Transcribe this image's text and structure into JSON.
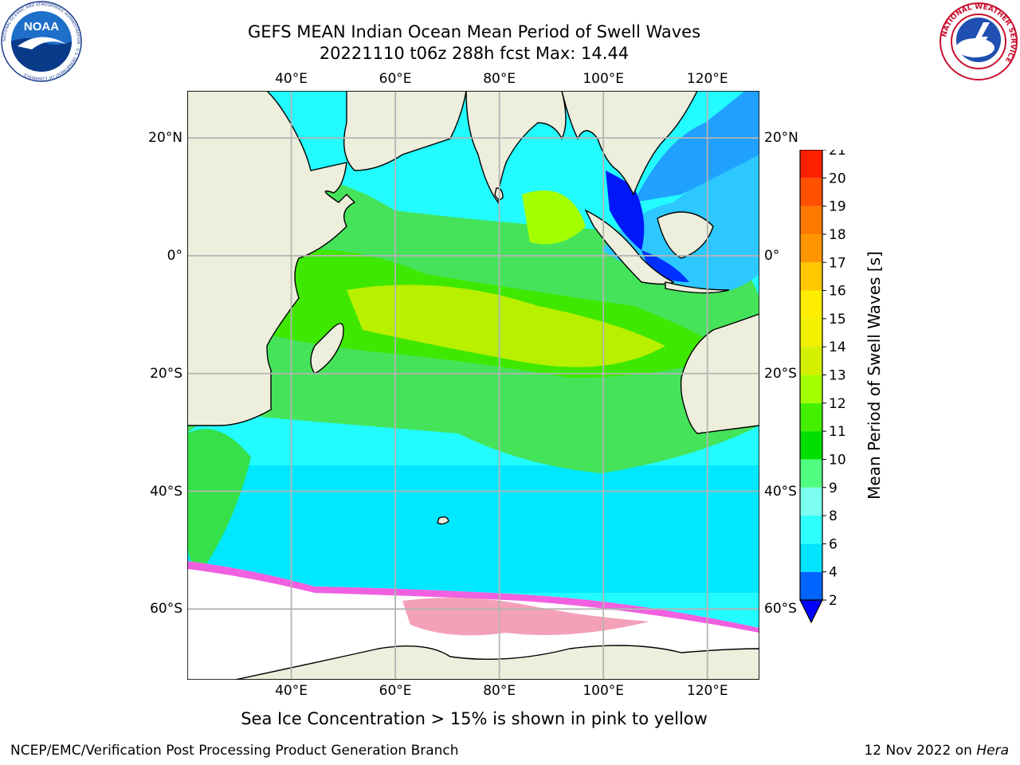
{
  "header": {
    "title_line1": "GEFS MEAN Indian Ocean Mean Period of Swell Waves",
    "title_line2": "20221110 t06z 288h fcst   Max: 14.44"
  },
  "logos": {
    "left": {
      "name": "noaa-logo",
      "text": "NOAA",
      "ring_text": "NATIONAL OCEANIC AND ATMOSPHERIC ADMINISTRATION · U.S. DEPARTMENT OF COMMERCE"
    },
    "right": {
      "name": "nws-logo",
      "ring_text": "NATIONAL WEATHER SERVICE"
    }
  },
  "map": {
    "region": "Indian Ocean",
    "lon_range": [
      20,
      130
    ],
    "lat_range": [
      -72,
      28
    ],
    "lon_ticks": [
      "40°E",
      "60°E",
      "80°E",
      "100°E",
      "120°E"
    ],
    "lat_ticks": [
      "20°N",
      "0°",
      "20°S",
      "40°S",
      "60°S"
    ],
    "land_color": "#eeeedc",
    "grid_color": "#b4b4b4",
    "sea_ice_note_color": "#f060e0"
  },
  "colorbar": {
    "label": "Mean Period of Swell Waves [s]",
    "ticks": [
      "2",
      "4",
      "6",
      "8",
      "9",
      "10",
      "11",
      "12",
      "13",
      "14",
      "15",
      "16",
      "17",
      "18",
      "19",
      "20",
      "21"
    ],
    "colors": [
      "#0064ff",
      "#00e4ff",
      "#2effff",
      "#7cfff0",
      "#50ff80",
      "#00e000",
      "#44f000",
      "#a4ff00",
      "#d4f000",
      "#f0f000",
      "#ffee00",
      "#ffc800",
      "#ff9600",
      "#ff7800",
      "#ff5000",
      "#ff2000"
    ],
    "under_color": "#0000ff"
  },
  "footer": {
    "subtitle": "Sea Ice Concentration > 15% is shown in pink to yellow",
    "left": "NCEP/EMC/Verification Post Processing Product Generation Branch",
    "date": "12 Nov 2022 on",
    "host": "Hera"
  }
}
